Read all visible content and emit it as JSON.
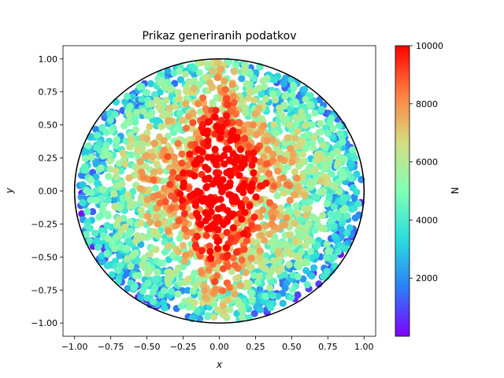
{
  "chart_data": {
    "type": "scatter",
    "title": "Prikaz generiranih podatkov",
    "xlabel": "x",
    "ylabel": "y",
    "xlim": [
      -1.08,
      1.08
    ],
    "ylim": [
      -1.1,
      1.1
    ],
    "x_ticks": [
      -1.0,
      -0.75,
      -0.5,
      -0.25,
      0.0,
      0.25,
      0.5,
      0.75,
      1.0
    ],
    "x_tick_labels": [
      "−1.00",
      "−0.75",
      "−0.50",
      "−0.25",
      "0.00",
      "0.25",
      "0.50",
      "0.75",
      "1.00"
    ],
    "y_ticks": [
      -1.0,
      -0.75,
      -0.5,
      -0.25,
      0.0,
      0.25,
      0.5,
      0.75,
      1.0
    ],
    "y_tick_labels": [
      "−1.00",
      "−0.75",
      "−0.50",
      "−0.25",
      "0.00",
      "0.25",
      "0.50",
      "0.75",
      "1.00"
    ],
    "grid": false,
    "boundary": {
      "shape": "circle",
      "center": [
        0,
        0
      ],
      "radius": 1.0,
      "color": "#000000"
    },
    "colorbar": {
      "label": "N",
      "range": [
        0,
        10000
      ],
      "ticks": [
        2000,
        4000,
        6000,
        8000,
        10000
      ],
      "tick_labels": [
        "2000",
        "4000",
        "6000",
        "8000",
        "10000"
      ],
      "colormap": "rainbow",
      "stops": [
        "#8000ff",
        "#2c7ef7",
        "#2adddd",
        "#80ffb4",
        "#d4dd80",
        "#ff8040",
        "#ff0000"
      ]
    },
    "points": {
      "count": 2600,
      "value_max": 10000,
      "distribution": "uniform in unit disk; N higher toward center, red concentration along x≈0 and upper half"
    }
  }
}
